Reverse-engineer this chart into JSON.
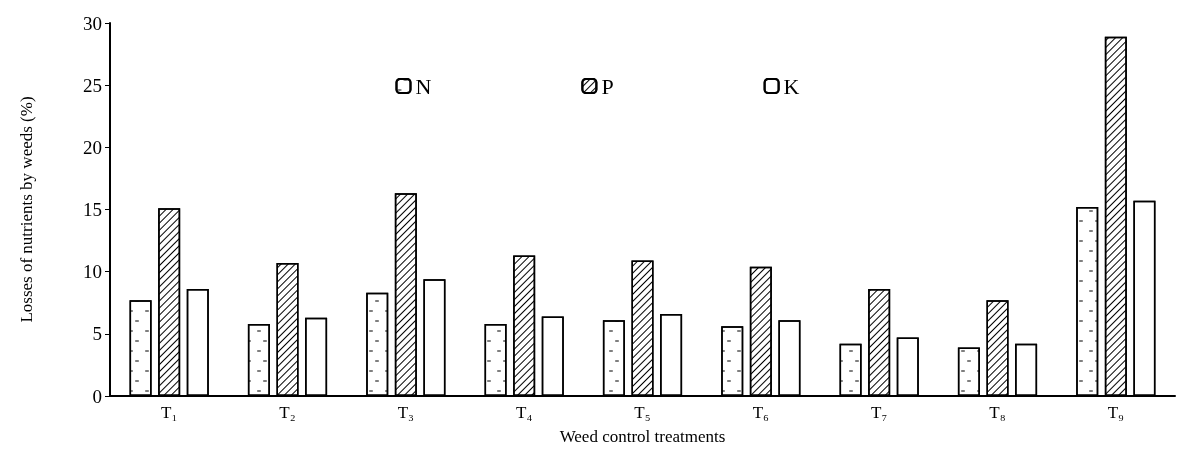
{
  "chart_data": {
    "type": "bar",
    "xlabel": "Weed control treatments",
    "ylabel": "Losses of nutrients by weeds (%)",
    "categories": [
      "T₁",
      "T₂",
      "T₃",
      "T₄",
      "T₅",
      "T₆",
      "T₇",
      "T₈",
      "T₉"
    ],
    "series": [
      {
        "name": "N",
        "color": "#ffffff",
        "values": [
          7.7,
          5.8,
          8.3,
          5.8,
          6.1,
          5.6,
          4.2,
          3.9,
          15.2
        ]
      },
      {
        "name": "P",
        "color": "#ffffff",
        "values": [
          15.1,
          10.7,
          16.3,
          11.3,
          10.9,
          10.4,
          8.6,
          7.7,
          28.9
        ]
      },
      {
        "name": "K",
        "color": "#ffffff",
        "values": [
          8.6,
          6.3,
          9.4,
          6.4,
          6.6,
          6.1,
          4.7,
          4.2,
          15.7
        ]
      }
    ],
    "ylim": [
      0,
      30
    ],
    "yticks": [
      0,
      5,
      10,
      15,
      20,
      25,
      30
    ],
    "grid": false,
    "legend": "top"
  }
}
